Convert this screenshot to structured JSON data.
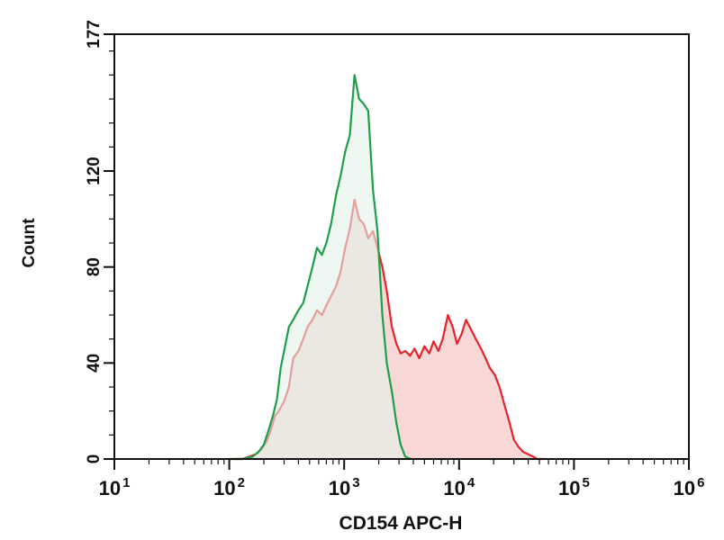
{
  "chart_data": {
    "type": "area",
    "title": "",
    "xlabel": "CD154 APC-H",
    "ylabel": "Count",
    "xscale": "log",
    "xlim": [
      10,
      1000000
    ],
    "ylim": [
      0,
      177
    ],
    "grid": false,
    "legend": "none",
    "x_ticks": [
      {
        "base": "10",
        "exp": "1",
        "value": 10
      },
      {
        "base": "10",
        "exp": "2",
        "value": 100
      },
      {
        "base": "10",
        "exp": "3",
        "value": 1000
      },
      {
        "base": "10",
        "exp": "4",
        "value": 10000
      },
      {
        "base": "10",
        "exp": "5",
        "value": 100000
      },
      {
        "base": "10",
        "exp": "6",
        "value": 1000000
      }
    ],
    "y_ticks": [
      {
        "label": "0",
        "value": 0
      },
      {
        "label": "40",
        "value": 40
      },
      {
        "label": "80",
        "value": 80
      },
      {
        "label": "120",
        "value": 120
      },
      {
        "label": "177",
        "value": 177
      }
    ],
    "series": [
      {
        "color": "#e5242b",
        "fill": "#f7d3d3",
        "x": [
          110,
          130,
          150,
          170,
          190,
          210,
          230,
          250,
          270,
          300,
          330,
          360,
          400,
          440,
          480,
          530,
          580,
          640,
          700,
          770,
          850,
          930,
          1020,
          1120,
          1230,
          1350,
          1480,
          1620,
          1780,
          1950,
          2150,
          2350,
          2600,
          2850,
          3100,
          3400,
          3750,
          4100,
          4500,
          5000,
          5500,
          6000,
          6600,
          7200,
          8000,
          8800,
          9600,
          10500,
          11500,
          12700,
          14000,
          15500,
          17000,
          18500,
          20500,
          22500,
          25000,
          27500,
          30000,
          33000,
          36000,
          40000,
          44000,
          48000,
          55000
        ],
        "y": [
          0,
          0,
          1,
          2,
          4,
          7,
          12,
          18,
          20,
          24,
          30,
          42,
          45,
          50,
          55,
          58,
          62,
          60,
          64,
          68,
          72,
          78,
          88,
          96,
          108,
          100,
          98,
          92,
          95,
          88,
          80,
          70,
          55,
          48,
          44,
          45,
          43,
          46,
          42,
          47,
          44,
          49,
          45,
          50,
          60,
          55,
          48,
          52,
          58,
          54,
          50,
          46,
          42,
          38,
          35,
          30,
          22,
          15,
          8,
          5,
          3,
          2,
          1,
          0,
          0
        ]
      },
      {
        "color": "#1f9e4b",
        "fill": "#e3f2e8",
        "x": [
          100,
          130,
          160,
          180,
          200,
          220,
          240,
          260,
          280,
          300,
          330,
          360,
          400,
          440,
          480,
          530,
          580,
          640,
          700,
          770,
          850,
          930,
          1020,
          1120,
          1230,
          1350,
          1480,
          1620,
          1780,
          1950,
          2150,
          2350,
          2600,
          2850,
          3100,
          3400,
          3800
        ],
        "y": [
          0,
          0,
          1,
          3,
          6,
          12,
          18,
          25,
          38,
          45,
          55,
          58,
          62,
          65,
          72,
          80,
          88,
          85,
          90,
          98,
          110,
          118,
          128,
          135,
          160,
          150,
          148,
          145,
          112,
          95,
          60,
          40,
          28,
          15,
          6,
          1,
          0
        ]
      }
    ]
  }
}
